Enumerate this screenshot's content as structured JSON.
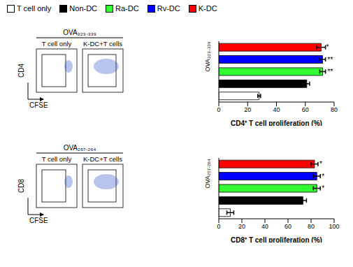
{
  "chart_data": [
    {
      "type": "bar",
      "orientation": "horizontal",
      "legend": "top",
      "flow_title": "OVA₃₂₃₋₃₃₉",
      "flow_panels": [
        "T cell only",
        "K-DC+T cells"
      ],
      "flow_y_label": "CD4",
      "flow_x_label": "CFSE",
      "y_label": "OVA₃₂₃₋₃₃₉",
      "x_label": "CD4⁺ T cell proliferation (%)",
      "categories": [
        "K-DC",
        "Rv-DC",
        "Ra-DC",
        "Non-DC",
        "T cell only"
      ],
      "colors": [
        "#ff0000",
        "#0000ff",
        "#33ff33",
        "#000000",
        "#ffffff"
      ],
      "values": [
        71,
        72,
        72,
        61,
        28
      ],
      "errors": [
        3,
        2,
        2,
        2,
        1
      ],
      "annotations": [
        "*",
        "**",
        "**",
        null,
        null
      ],
      "xlim": [
        0,
        80
      ],
      "xticks": [
        0,
        20,
        40,
        60,
        80
      ]
    },
    {
      "type": "bar",
      "orientation": "horizontal",
      "legend": "top",
      "flow_title": "OVA₂₅₇₋₂₆₄",
      "flow_panels": [
        "T cell only",
        "K-DC+T cells"
      ],
      "flow_y_label": "CD8",
      "flow_x_label": "CFSE",
      "y_label": "OVA₂₅₇₋₂₆₄",
      "x_label": "CD8⁺ T cell proliferation (%)",
      "categories": [
        "K-DC",
        "Rv-DC",
        "Ra-DC",
        "Non-DC",
        "T cell only"
      ],
      "colors": [
        "#ff0000",
        "#0000ff",
        "#33ff33",
        "#000000",
        "#ffffff"
      ],
      "values": [
        83,
        85,
        85,
        73,
        10
      ],
      "errors": [
        3,
        3,
        3,
        3,
        3
      ],
      "annotations": [
        "*",
        "*",
        "*",
        null,
        null
      ],
      "xlim": [
        0,
        100
      ],
      "xticks": [
        0,
        20,
        40,
        60,
        80,
        100
      ]
    }
  ]
}
